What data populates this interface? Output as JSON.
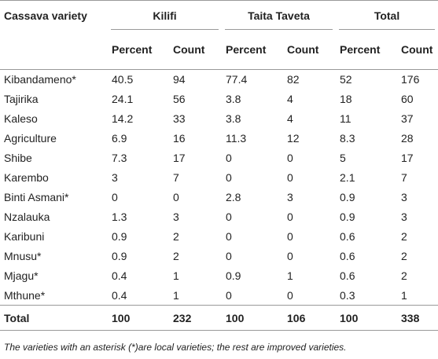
{
  "table": {
    "group_headers": [
      "Cassava variety",
      "Kilifi",
      "Taita Taveta",
      "Total"
    ],
    "sub_headers": [
      "Percent",
      "Count",
      "Percent",
      "Count",
      "Percent",
      "Count"
    ],
    "rows": [
      [
        "Kibandameno*",
        40.5,
        94,
        77.4,
        82,
        52,
        176
      ],
      [
        "Tajirika",
        24.1,
        56,
        3.8,
        4,
        18,
        60
      ],
      [
        "Kaleso",
        14.2,
        33,
        3.8,
        4,
        11,
        37
      ],
      [
        "Agriculture",
        6.9,
        16,
        11.3,
        12,
        8.3,
        28
      ],
      [
        "Shibe",
        7.3,
        17,
        0,
        0,
        5,
        17
      ],
      [
        "Karembo",
        3,
        7,
        0,
        0,
        2.1,
        7
      ],
      [
        "Binti Asmani*",
        0,
        0,
        2.8,
        3,
        0.9,
        3
      ],
      [
        "Nzalauka",
        1.3,
        3,
        0,
        0,
        0.9,
        3
      ],
      [
        "Karibuni",
        0.9,
        2,
        0,
        0,
        0.6,
        2
      ],
      [
        "Mnusu*",
        0.9,
        2,
        0,
        0,
        0.6,
        2
      ],
      [
        "Mjagu*",
        0.4,
        1,
        0.9,
        1,
        0.6,
        2
      ],
      [
        "Mthune*",
        0.4,
        1,
        0,
        0,
        0.3,
        1
      ]
    ],
    "total_row": [
      "Total",
      100,
      232,
      100,
      106,
      100,
      338
    ]
  },
  "footnote": "The varieties with an asterisk (*)are local varieties; the rest are improved varieties."
}
